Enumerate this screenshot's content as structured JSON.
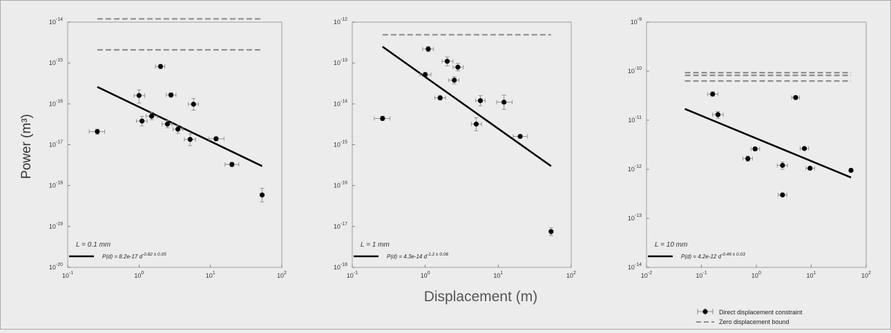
{
  "ylabel": "Power (m³)",
  "xlabel": "Displacement (m)",
  "legend": {
    "direct_label": "Direct displacement constraint",
    "zero_label": "Zero displacement bound"
  },
  "colors": {
    "background": "#ececec",
    "panel_bg": "#ececec",
    "fit": "#000000",
    "bound": "#8c8c8c",
    "errorbar": "#8a8a8a",
    "point": "#000000"
  },
  "chart_data": [
    {
      "type": "scatter",
      "xscale": "log",
      "yscale": "log",
      "xlim": [
        0.1,
        100
      ],
      "ylim": [
        1e-20,
        1e-14
      ],
      "x_ticks": [
        {
          "v": 0.1,
          "e": "-1"
        },
        {
          "v": 1,
          "e": "0"
        },
        {
          "v": 10,
          "e": "1"
        },
        {
          "v": 100,
          "e": "2"
        }
      ],
      "y_ticks": [
        {
          "v": 1e-20,
          "e": "-20"
        },
        {
          "v": 1e-19,
          "e": "-19"
        },
        {
          "v": 1e-18,
          "e": "-18"
        },
        {
          "v": 1e-17,
          "e": "-17"
        },
        {
          "v": 1e-16,
          "e": "-16"
        },
        {
          "v": 1e-15,
          "e": "-15"
        },
        {
          "v": 1e-14,
          "e": "-14"
        }
      ],
      "annotation": "L = 0.1 mm",
      "fit_label": "P(d) = 8.2e-17 d",
      "fit_exp": "-0.82 ± 0.05",
      "fit": {
        "x": [
          0.26,
          53
        ],
        "y": [
          2.6e-16,
          3e-18
        ]
      },
      "bounds": [
        1.2e-14,
        2.1e-15
      ],
      "bound_x": [
        0.26,
        53
      ],
      "points": [
        {
          "x": 0.26,
          "y": 2.1e-17,
          "xerr": [
            0.2,
            0.33
          ],
          "yerr": [
            1.8e-17,
            2.4e-17
          ]
        },
        {
          "x": 1.0,
          "y": 1.6e-16,
          "xerr": [
            0.85,
            1.2
          ],
          "yerr": [
            1.05e-16,
            2.2e-16
          ]
        },
        {
          "x": 1.1,
          "y": 3.8e-17,
          "xerr": [
            0.92,
            1.3
          ],
          "yerr": [
            2.9e-17,
            4.9e-17
          ]
        },
        {
          "x": 1.5,
          "y": 5e-17,
          "xerr": [
            1.25,
            1.8
          ],
          "yerr": [
            4.1e-17,
            6.2e-17
          ]
        },
        {
          "x": 2.0,
          "y": 8.2e-16,
          "xerr": [
            1.7,
            2.3
          ],
          "yerr": [
            7.3e-16,
            9.2e-16
          ]
        },
        {
          "x": 2.5,
          "y": 3.2e-17,
          "xerr": [
            2.1,
            2.9
          ],
          "yerr": [
            2.6e-17,
            3.9e-17
          ]
        },
        {
          "x": 2.8,
          "y": 1.65e-16,
          "xerr": [
            2.4,
            3.3
          ],
          "yerr": [
            1.45e-16,
            1.85e-16
          ]
        },
        {
          "x": 3.5,
          "y": 2.4e-17,
          "xerr": [
            3.0,
            4.1
          ],
          "yerr": [
            1.9e-17,
            3e-17
          ]
        },
        {
          "x": 5.2,
          "y": 1.35e-17,
          "xerr": [
            4.3,
            6.2
          ],
          "yerr": [
            9.5e-18,
            1.85e-17
          ]
        },
        {
          "x": 5.8,
          "y": 9.8e-17,
          "xerr": [
            4.9,
            6.8
          ],
          "yerr": [
            7e-17,
            1.35e-16
          ]
        },
        {
          "x": 12,
          "y": 1.4e-17,
          "xerr": [
            9.5,
            15.5
          ],
          "yerr": [
            1.25e-17,
            1.55e-17
          ]
        },
        {
          "x": 20,
          "y": 3.3e-18,
          "xerr": [
            16,
            25
          ],
          "yerr": [
            2.9e-18,
            3.7e-18
          ]
        },
        {
          "x": 53,
          "y": 5.9e-19,
          "xerr": [
            51,
            55
          ],
          "yerr": [
            4e-19,
            8.6e-19
          ]
        }
      ]
    },
    {
      "type": "scatter",
      "xscale": "log",
      "yscale": "log",
      "xlim": [
        0.1,
        100
      ],
      "ylim": [
        1e-18,
        1e-12
      ],
      "x_ticks": [
        {
          "v": 0.1,
          "e": "-1"
        },
        {
          "v": 1,
          "e": "0"
        },
        {
          "v": 10,
          "e": "1"
        },
        {
          "v": 100,
          "e": "2"
        }
      ],
      "y_ticks": [
        {
          "v": 1e-18,
          "e": "-18"
        },
        {
          "v": 1e-17,
          "e": "-17"
        },
        {
          "v": 1e-16,
          "e": "-16"
        },
        {
          "v": 1e-15,
          "e": "-15"
        },
        {
          "v": 1e-14,
          "e": "-14"
        },
        {
          "v": 1e-13,
          "e": "-13"
        },
        {
          "v": 1e-12,
          "e": "-12"
        }
      ],
      "annotation": "L = 1 mm",
      "fit_label": "P(d) = 4.3e-14 d",
      "fit_exp": "-1.2 ± 0.06",
      "fit": {
        "x": [
          0.26,
          53
        ],
        "y": [
          2.5e-13,
          3e-16
        ]
      },
      "bounds": [
        4.9e-13
      ],
      "bound_x": [
        0.26,
        53
      ],
      "points": [
        {
          "x": 0.26,
          "y": 4.4e-15,
          "xerr": [
            0.2,
            0.33
          ],
          "yerr": [
            3.9e-15,
            5e-15
          ]
        },
        {
          "x": 1.0,
          "y": 5.2e-14,
          "xerr": [
            0.85,
            1.2
          ],
          "yerr": [
            4.6e-14,
            5.9e-14
          ]
        },
        {
          "x": 1.1,
          "y": 2.2e-13,
          "xerr": [
            0.92,
            1.3
          ],
          "yerr": [
            1.9e-13,
            2.5e-13
          ]
        },
        {
          "x": 1.6,
          "y": 1.4e-14,
          "xerr": [
            1.35,
            1.9
          ],
          "yerr": [
            1.25e-14,
            1.6e-14
          ]
        },
        {
          "x": 2.0,
          "y": 1.1e-13,
          "xerr": [
            1.7,
            2.4
          ],
          "yerr": [
            8.5e-14,
            1.4e-13
          ]
        },
        {
          "x": 2.5,
          "y": 3.8e-14,
          "xerr": [
            2.1,
            2.9
          ],
          "yerr": [
            3.1e-14,
            4.6e-14
          ]
        },
        {
          "x": 2.8,
          "y": 7.9e-14,
          "xerr": [
            2.4,
            3.3
          ],
          "yerr": [
            6.4e-14,
            9.8e-14
          ]
        },
        {
          "x": 5.0,
          "y": 3.2e-15,
          "xerr": [
            4.3,
            5.9
          ],
          "yerr": [
            2.2e-15,
            4.6e-15
          ]
        },
        {
          "x": 5.7,
          "y": 1.2e-14,
          "xerr": [
            4.9,
            6.6
          ],
          "yerr": [
            9e-15,
            1.6e-14
          ]
        },
        {
          "x": 12,
          "y": 1.1e-14,
          "xerr": [
            9.5,
            15.5
          ],
          "yerr": [
            7.3e-15,
            1.65e-14
          ]
        },
        {
          "x": 20,
          "y": 1.6e-15,
          "xerr": [
            16,
            25
          ],
          "yerr": [
            1.45e-15,
            1.75e-15
          ]
        },
        {
          "x": 53,
          "y": 7.5e-18,
          "xerr": [
            51,
            55
          ],
          "yerr": [
            6e-18,
            9.3e-18
          ]
        }
      ]
    },
    {
      "type": "scatter",
      "xscale": "log",
      "yscale": "log",
      "xlim": [
        0.01,
        100
      ],
      "ylim": [
        1e-14,
        1e-09
      ],
      "x_ticks": [
        {
          "v": 0.01,
          "e": "-2"
        },
        {
          "v": 0.1,
          "e": "-1"
        },
        {
          "v": 1,
          "e": "0"
        },
        {
          "v": 10,
          "e": "1"
        },
        {
          "v": 100,
          "e": "2"
        }
      ],
      "y_ticks": [
        {
          "v": 1e-14,
          "e": "-14"
        },
        {
          "v": 1e-13,
          "e": "-13"
        },
        {
          "v": 1e-12,
          "e": "-12"
        },
        {
          "v": 1e-11,
          "e": "-11"
        },
        {
          "v": 1e-10,
          "e": "-10"
        },
        {
          "v": 1e-09,
          "e": "-9"
        }
      ],
      "annotation": "L = 10 mm",
      "fit_label": "P(d) = 4.2e-12 d",
      "fit_exp": "-0.46 ± 0.03",
      "fit": {
        "x": [
          0.05,
          53
        ],
        "y": [
          1.7e-11,
          6.8e-13
        ]
      },
      "bounds": [
        9.3e-11,
        8.2e-11,
        6.3e-11
      ],
      "bound_x": [
        0.05,
        53
      ],
      "points": [
        {
          "x": 0.16,
          "y": 3.4e-11,
          "xerr": [
            0.13,
            0.2
          ],
          "yerr": [
            3.1e-11,
            3.8e-11
          ]
        },
        {
          "x": 0.2,
          "y": 1.3e-11,
          "xerr": [
            0.16,
            0.25
          ],
          "yerr": [
            1.1e-11,
            1.5e-11
          ]
        },
        {
          "x": 0.7,
          "y": 1.65e-12,
          "xerr": [
            0.57,
            0.85
          ],
          "yerr": [
            1.45e-12,
            1.85e-12
          ]
        },
        {
          "x": 0.95,
          "y": 2.6e-12,
          "xerr": [
            0.8,
            1.15
          ],
          "yerr": [
            2.4e-12,
            2.8e-12
          ]
        },
        {
          "x": 3.0,
          "y": 1.2e-12,
          "xerr": [
            2.4,
            3.7
          ],
          "yerr": [
            1e-12,
            1.4e-12
          ]
        },
        {
          "x": 3.0,
          "y": 3e-13,
          "xerr": [
            2.5,
            3.6
          ],
          "yerr": [
            2.8e-13,
            3.2e-13
          ]
        },
        {
          "x": 5.2,
          "y": 2.9e-11,
          "xerr": [
            4.4,
            6.1
          ],
          "yerr": [
            2.7e-11,
            3.1e-11
          ]
        },
        {
          "x": 7.5,
          "y": 2.65e-12,
          "xerr": [
            6.3,
            9.0
          ],
          "yerr": [
            2.5e-12,
            2.8e-12
          ]
        },
        {
          "x": 9.5,
          "y": 1.05e-12,
          "xerr": [
            8.0,
            11.5
          ],
          "yerr": [
            9.8e-13,
            1.12e-12
          ]
        },
        {
          "x": 53,
          "y": 9.5e-13,
          "xerr": [
            51,
            55
          ],
          "yerr": [
            8.8e-13,
            1.03e-12
          ]
        }
      ]
    }
  ]
}
